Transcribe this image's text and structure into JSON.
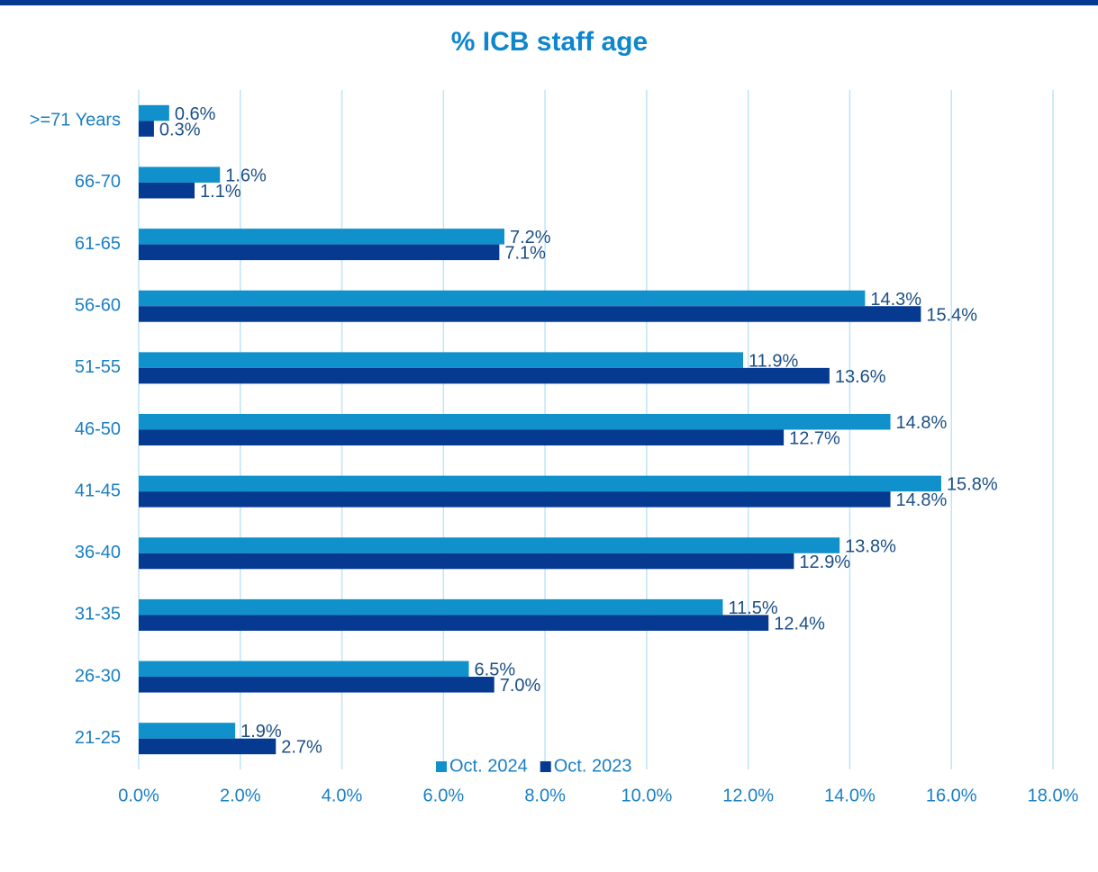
{
  "chart_data": {
    "type": "hbar",
    "title": "% ICB staff age",
    "categories": [
      ">=71 Years",
      "66-70",
      "61-65",
      "56-60",
      "51-55",
      "46-50",
      "41-45",
      "36-40",
      "31-35",
      "26-30",
      "21-25"
    ],
    "series": [
      {
        "name": "Oct. 2024",
        "color": "#1191cb",
        "values": [
          0.6,
          1.6,
          7.2,
          14.3,
          11.9,
          14.8,
          15.8,
          13.8,
          11.5,
          6.5,
          1.9
        ],
        "value_labels": [
          "0.6%",
          "1.6%",
          "7.2%",
          "14.3%",
          "11.9%",
          "14.8%",
          "15.8%",
          "13.8%",
          "11.5%",
          "6.5%",
          "1.9%"
        ]
      },
      {
        "name": "Oct. 2023",
        "color": "#063a91",
        "values": [
          0.3,
          1.1,
          7.1,
          15.4,
          13.6,
          12.7,
          14.8,
          12.9,
          12.4,
          7.0,
          2.7
        ],
        "value_labels": [
          "0.3%",
          "1.1%",
          "7.1%",
          "15.4%",
          "13.6%",
          "12.7%",
          "14.8%",
          "12.9%",
          "12.4%",
          "7.0%",
          "2.7%"
        ]
      }
    ],
    "xlim": [
      0,
      18
    ],
    "xticks": [
      {
        "value": 0,
        "label": "0.0%"
      },
      {
        "value": 2,
        "label": "2.0%"
      },
      {
        "value": 4,
        "label": "4.0%"
      },
      {
        "value": 6,
        "label": "6.0%"
      },
      {
        "value": 8,
        "label": "8.0%"
      },
      {
        "value": 10,
        "label": "10.0%"
      },
      {
        "value": 12,
        "label": "12.0%"
      },
      {
        "value": 14,
        "label": "14.0%"
      },
      {
        "value": 16,
        "label": "16.0%"
      },
      {
        "value": 18,
        "label": "18.0%"
      }
    ],
    "grid": true,
    "legend": "bottom"
  }
}
